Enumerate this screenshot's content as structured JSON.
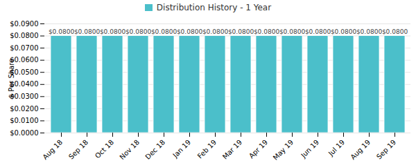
{
  "chart_data": {
    "type": "bar",
    "ylabel": "$ Per Share",
    "categories": [
      "Aug 18",
      "Sep 18",
      "Oct 18",
      "Nov 18",
      "Dec 18",
      "Jan 19",
      "Feb 19",
      "Mar 19",
      "Apr 19",
      "May 19",
      "Jun 19",
      "Jul 19",
      "Aug 19",
      "Sep 19"
    ],
    "series": [
      {
        "name": "Distribution History - 1 Year",
        "color": "#4bbfca",
        "values": [
          0.08,
          0.08,
          0.08,
          0.08,
          0.08,
          0.08,
          0.08,
          0.08,
          0.08,
          0.08,
          0.08,
          0.08,
          0.08,
          0.08
        ],
        "value_labels": [
          "$0.0800",
          "$0.0800",
          "$0.0800",
          "$0.0800",
          "$0.0800",
          "$0.0800",
          "$0.0800",
          "$0.0800",
          "$0.0800",
          "$0.0800",
          "$0.0800",
          "$0.0800",
          "$0.0800",
          "$0.0800"
        ]
      }
    ],
    "ylim": [
      0,
      0.09
    ],
    "yticks": [
      {
        "value": 0,
        "label": "$0.0000"
      },
      {
        "value": 0.01,
        "label": "$0.0100"
      },
      {
        "value": 0.02,
        "label": "$0.0200"
      },
      {
        "value": 0.03,
        "label": "$0.0300"
      },
      {
        "value": 0.04,
        "label": "$0.0400"
      },
      {
        "value": 0.05,
        "label": "$0.0500"
      },
      {
        "value": 0.06,
        "label": "$0.0600"
      },
      {
        "value": 0.07,
        "label": "$0.0700"
      },
      {
        "value": 0.08,
        "label": "$0.0800"
      },
      {
        "value": 0.09,
        "label": "$0.0900"
      }
    ],
    "grid": true,
    "legend": "top",
    "data_labels": true
  }
}
